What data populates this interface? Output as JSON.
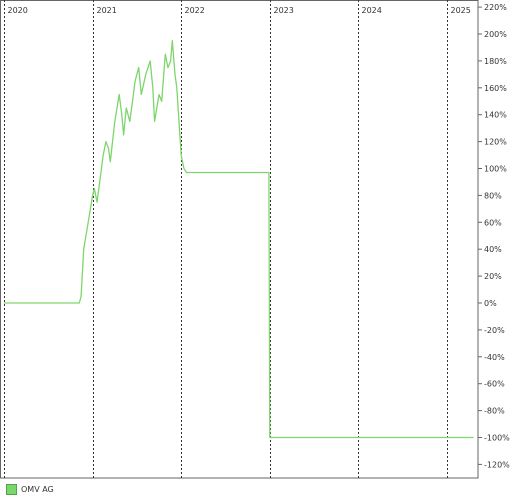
{
  "chart_data": {
    "type": "line",
    "x_axis_labels": [
      "2020",
      "2021",
      "2022",
      "2023",
      "2024",
      "2025"
    ],
    "y_tick_labels": [
      "220%",
      "200%",
      "180%",
      "160%",
      "140%",
      "120%",
      "100%",
      "80%",
      "60%",
      "40%",
      "20%",
      "0%",
      "-20%",
      "-40%",
      "-60%",
      "-80%",
      "-100%",
      "-120%"
    ],
    "ylim": [
      -125,
      225
    ],
    "xlim": [
      2020.0,
      2025.3
    ],
    "grid": "vertical dashed at year boundaries",
    "legend_position": "bottom-left",
    "series": [
      {
        "name": "OMV AG",
        "color": "#7dd66b",
        "x": [
          2020.0,
          2020.85,
          2020.87,
          2020.9,
          2020.95,
          2021.0,
          2021.02,
          2021.05,
          2021.08,
          2021.12,
          2021.15,
          2021.18,
          2021.2,
          2021.25,
          2021.3,
          2021.33,
          2021.35,
          2021.38,
          2021.42,
          2021.45,
          2021.48,
          2021.52,
          2021.55,
          2021.6,
          2021.65,
          2021.68,
          2021.7,
          2021.75,
          2021.78,
          2021.82,
          2021.85,
          2021.88,
          2021.9,
          2021.93,
          2021.95,
          2021.98,
          2022.0,
          2022.03,
          2022.06,
          2022.08,
          2022.1,
          2022.15,
          2022.2,
          2022.5,
          2022.99,
          2023.0,
          2023.5,
          2024.0,
          2024.5,
          2025.0,
          2025.3
        ],
        "y": [
          0,
          0,
          5,
          40,
          60,
          80,
          85,
          75,
          90,
          110,
          120,
          115,
          105,
          135,
          155,
          140,
          125,
          145,
          135,
          150,
          165,
          175,
          155,
          170,
          180,
          160,
          135,
          155,
          150,
          185,
          175,
          180,
          195,
          170,
          160,
          130,
          110,
          100,
          97,
          97,
          97,
          97,
          97,
          97,
          97,
          -100,
          -100,
          -100,
          -100,
          -100,
          -100
        ]
      }
    ]
  }
}
